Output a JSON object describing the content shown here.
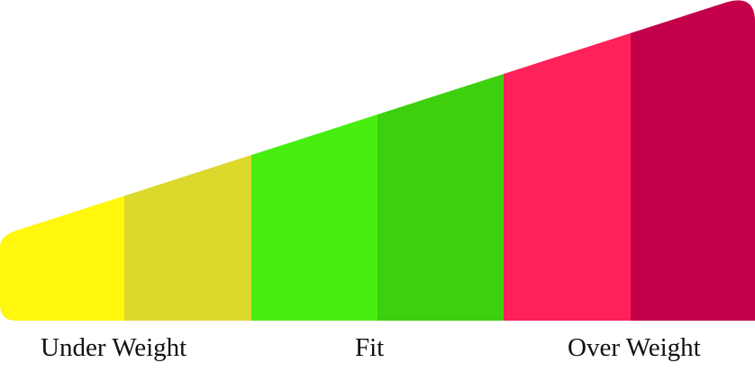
{
  "scale": {
    "segments": [
      {
        "color": "#FFF70C"
      },
      {
        "color": "#DCD82C"
      },
      {
        "color": "#48EE10"
      },
      {
        "color": "#3DD00E"
      },
      {
        "color": "#FF2159"
      },
      {
        "color": "#C4004B"
      }
    ]
  },
  "labels": {
    "under": "Under Weight",
    "fit": "Fit",
    "over": "Over Weight"
  }
}
